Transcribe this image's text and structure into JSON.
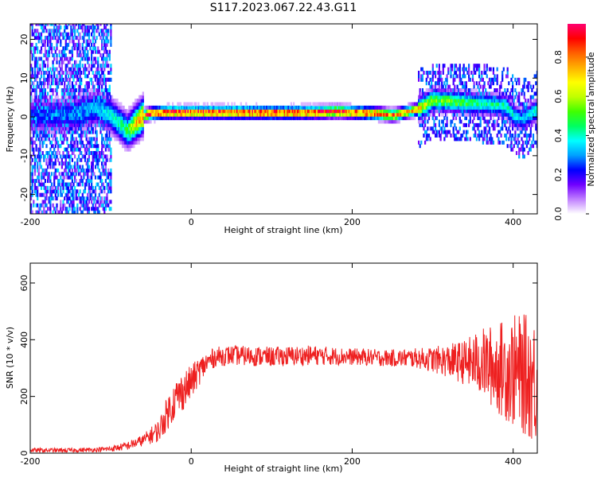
{
  "title": "S117.2023.067.22.43.G11",
  "chart_data": [
    {
      "type": "heatmap",
      "xlabel": "Height of straight line (km)",
      "ylabel": "Frequency (Hz)",
      "xlim": [
        -200,
        430
      ],
      "ylim": [
        -25,
        24
      ],
      "xticks": [
        -200,
        0,
        200,
        400
      ],
      "yticks": [
        20,
        10,
        0,
        -10,
        -20
      ],
      "colorbar": {
        "label": "Normalized spectral amplitude",
        "range": [
          0,
          0.97
        ],
        "ticks": [
          "0.0",
          "0.2",
          "0.4",
          "0.6",
          "0.8"
        ],
        "colors": [
          "#ffffff",
          "#c080ff",
          "#7000ff",
          "#0000ff",
          "#00a0ff",
          "#00ffff",
          "#00ff60",
          "#40ff00",
          "#c0ff00",
          "#ffff00",
          "#ffb000",
          "#ff6000",
          "#ff0000",
          "#ff0070"
        ]
      },
      "ridge": {
        "x": [
          -200,
          -150,
          -120,
          -100,
          -90,
          -80,
          -70,
          -60,
          -50,
          -30,
          0,
          50,
          100,
          150,
          180,
          200,
          230,
          250,
          280,
          300,
          330,
          360,
          390,
          400,
          410,
          430
        ],
        "freq": [
          0,
          0,
          2,
          0,
          -2,
          -4,
          -2,
          0,
          0.5,
          0.8,
          0.8,
          0.8,
          0.7,
          0.8,
          1,
          0.8,
          0.5,
          0,
          1.5,
          4,
          3.5,
          3,
          2.5,
          0,
          -1,
          1.5
        ],
        "peak_amplitude": [
          0.25,
          0.3,
          0.35,
          0.4,
          0.45,
          0.5,
          0.75,
          0.85,
          0.95,
          0.95,
          0.95,
          0.95,
          0.95,
          0.95,
          0.95,
          0.92,
          0.9,
          0.88,
          0.75,
          0.6,
          0.55,
          0.45,
          0.45,
          0.4,
          0.35,
          0.45
        ]
      },
      "noise_region": {
        "x_start": -200,
        "x_end": -100,
        "description_level": 0.2
      }
    },
    {
      "type": "line",
      "xlabel": "Height of straight line (km)",
      "ylabel": "SNR (10 * v/v)",
      "xlim": [
        -200,
        430
      ],
      "ylim": [
        0,
        670
      ],
      "xticks": [
        -200,
        0,
        200,
        400
      ],
      "yticks": [
        0,
        200,
        400,
        600
      ],
      "series": [
        {
          "color": "#ee2020",
          "x": [
            -200,
            -150,
            -120,
            -100,
            -80,
            -60,
            -40,
            -30,
            -20,
            -10,
            0,
            10,
            20,
            30,
            50,
            100,
            150,
            200,
            250,
            280,
            300,
            320,
            340,
            360,
            380,
            400,
            420,
            430
          ],
          "mean": [
            10,
            10,
            12,
            15,
            25,
            45,
            80,
            140,
            190,
            220,
            250,
            290,
            320,
            340,
            345,
            340,
            345,
            340,
            335,
            335,
            330,
            325,
            320,
            320,
            300,
            290,
            270,
            250
          ],
          "spread": [
            8,
            8,
            8,
            10,
            15,
            20,
            40,
            60,
            70,
            70,
            60,
            50,
            40,
            35,
            35,
            35,
            35,
            30,
            30,
            35,
            45,
            60,
            80,
            120,
            160,
            200,
            220,
            230
          ]
        }
      ]
    }
  ]
}
